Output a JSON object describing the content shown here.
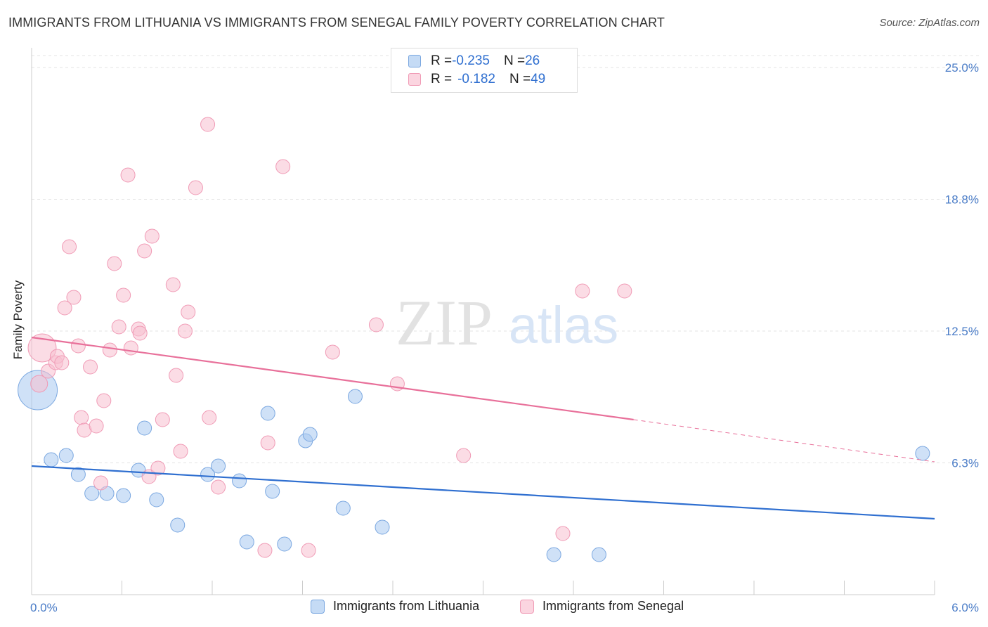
{
  "title": "IMMIGRANTS FROM LITHUANIA VS IMMIGRANTS FROM SENEGAL FAMILY POVERTY CORRELATION CHART",
  "source": "Source: ZipAtlas.com",
  "watermark": {
    "zip": "ZIP",
    "atlas": "atlas"
  },
  "legend_top": {
    "rows": [
      {
        "r_label": "R = ",
        "r_value": "-0.235",
        "n_label": "N = ",
        "n_value": "26",
        "color": "#a8c8f0",
        "border": "#7aa7e0"
      },
      {
        "r_label": "R = ",
        "r_value": "-0.182",
        "n_label": "N = ",
        "n_value": "49",
        "color": "#f8c0d0",
        "border": "#f09ab5"
      }
    ]
  },
  "legend_bottom": [
    {
      "label": "Immigrants from Lithuania",
      "color": "#c5dbf5",
      "border": "#7aa7e0"
    },
    {
      "label": "Immigrants from Senegal",
      "color": "#fbd5e0",
      "border": "#f09ab5"
    }
  ],
  "chart_data": {
    "type": "scatter",
    "ylabel": "Family Poverty",
    "xlim": [
      0.0,
      6.0
    ],
    "ylim": [
      0.0,
      25.0
    ],
    "y_ticks": [
      {
        "value": 6.25,
        "label": "6.3%"
      },
      {
        "value": 12.5,
        "label": "12.5%"
      },
      {
        "value": 18.75,
        "label": "18.8%"
      },
      {
        "value": 25.0,
        "label": "25.0%"
      }
    ],
    "x_tick_labels": [
      {
        "value": 0.0,
        "label": "0.0%"
      },
      {
        "value": 6.0,
        "label": "6.0%"
      }
    ],
    "grid": true,
    "series": [
      {
        "name": "Immigrants from Lithuania",
        "color": "#a8c8f0",
        "stroke": "#7aa7e0",
        "line_color": "#2f6fd0",
        "trend": {
          "x0": 0.0,
          "y0": 6.1,
          "x1": 6.0,
          "y1": 3.6
        },
        "points": [
          [
            0.04,
            9.7,
            28
          ],
          [
            0.13,
            6.4,
            10
          ],
          [
            0.23,
            6.6,
            10
          ],
          [
            0.31,
            5.7,
            10
          ],
          [
            0.4,
            4.8,
            10
          ],
          [
            0.5,
            4.8,
            10
          ],
          [
            0.61,
            4.7,
            10
          ],
          [
            0.71,
            5.9,
            10
          ],
          [
            0.75,
            7.9,
            10
          ],
          [
            0.83,
            4.5,
            10
          ],
          [
            0.97,
            3.3,
            10
          ],
          [
            1.17,
            5.7,
            10
          ],
          [
            1.24,
            6.1,
            10
          ],
          [
            1.38,
            5.4,
            10
          ],
          [
            1.43,
            2.5,
            10
          ],
          [
            1.57,
            8.6,
            10
          ],
          [
            1.6,
            4.9,
            10
          ],
          [
            1.68,
            2.4,
            10
          ],
          [
            1.82,
            7.3,
            10
          ],
          [
            1.85,
            7.6,
            10
          ],
          [
            2.07,
            4.1,
            10
          ],
          [
            2.15,
            9.4,
            10
          ],
          [
            2.33,
            3.2,
            10
          ],
          [
            3.47,
            1.9,
            10
          ],
          [
            3.77,
            1.9,
            10
          ],
          [
            5.92,
            6.7,
            10
          ]
        ]
      },
      {
        "name": "Immigrants from Senegal",
        "color": "#f8c0d0",
        "stroke": "#f09ab5",
        "line_color": "#e8709a",
        "trend": {
          "x0": 0.0,
          "y0": 12.2,
          "x1": 4.0,
          "y1": 8.3
        },
        "trend_dashed": {
          "x0": 4.0,
          "y0": 8.3,
          "x1": 6.0,
          "y1": 6.3
        },
        "points": [
          [
            0.07,
            11.7,
            20
          ],
          [
            0.05,
            10.0,
            12
          ],
          [
            0.11,
            10.6,
            10
          ],
          [
            0.16,
            11.0,
            10
          ],
          [
            0.17,
            11.3,
            10
          ],
          [
            0.2,
            11.0,
            10
          ],
          [
            0.22,
            13.6,
            10
          ],
          [
            0.25,
            16.5,
            10
          ],
          [
            0.28,
            14.1,
            10
          ],
          [
            0.31,
            11.8,
            10
          ],
          [
            0.33,
            8.4,
            10
          ],
          [
            0.35,
            7.8,
            10
          ],
          [
            0.39,
            10.8,
            10
          ],
          [
            0.43,
            8.0,
            10
          ],
          [
            0.46,
            5.3,
            10
          ],
          [
            0.48,
            9.2,
            10
          ],
          [
            0.52,
            11.6,
            10
          ],
          [
            0.55,
            15.7,
            10
          ],
          [
            0.58,
            12.7,
            10
          ],
          [
            0.61,
            14.2,
            10
          ],
          [
            0.64,
            19.9,
            10
          ],
          [
            0.66,
            11.7,
            10
          ],
          [
            0.71,
            12.6,
            10
          ],
          [
            0.72,
            12.4,
            10
          ],
          [
            0.75,
            16.3,
            10
          ],
          [
            0.78,
            5.6,
            10
          ],
          [
            0.8,
            17.0,
            10
          ],
          [
            0.84,
            6.0,
            10
          ],
          [
            0.87,
            8.3,
            10
          ],
          [
            0.94,
            14.7,
            10
          ],
          [
            0.96,
            10.4,
            10
          ],
          [
            0.99,
            6.8,
            10
          ],
          [
            1.02,
            12.5,
            10
          ],
          [
            1.04,
            13.4,
            10
          ],
          [
            1.09,
            19.3,
            10
          ],
          [
            1.17,
            22.3,
            10
          ],
          [
            1.18,
            8.4,
            10
          ],
          [
            1.24,
            5.1,
            10
          ],
          [
            1.55,
            2.1,
            10
          ],
          [
            1.57,
            7.2,
            10
          ],
          [
            1.67,
            20.3,
            10
          ],
          [
            1.84,
            2.1,
            10
          ],
          [
            2.0,
            11.5,
            10
          ],
          [
            2.29,
            12.8,
            10
          ],
          [
            2.43,
            10.0,
            10
          ],
          [
            2.87,
            6.6,
            10
          ],
          [
            3.53,
            2.9,
            10
          ],
          [
            3.66,
            14.4,
            10
          ],
          [
            3.94,
            14.4,
            10
          ]
        ]
      }
    ]
  }
}
